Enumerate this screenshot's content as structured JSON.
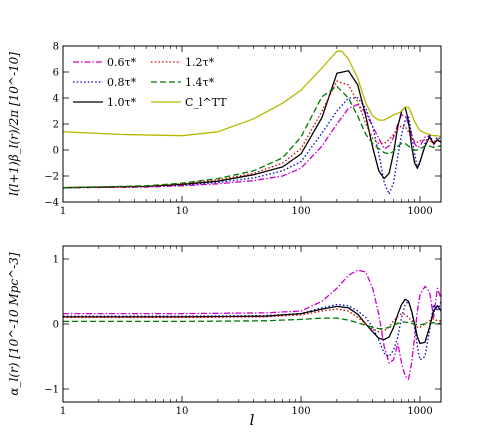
{
  "chart_data": [
    {
      "type": "line",
      "ylabel": "l(l+1)β_l(r)/2π   [10^-10]",
      "xscale": "log",
      "xlim": [
        1,
        1500
      ],
      "ylim": [
        -4,
        8
      ],
      "xticks": [
        "1",
        "10",
        "100",
        "1000"
      ],
      "yticks": [
        "−4",
        "−2",
        "0",
        "2",
        "4",
        "6",
        "8"
      ],
      "legend_location": "upper-left",
      "series": [
        {
          "name": "0.6τ*",
          "color": "#cc00cc",
          "dash": "6 2 1.5 2",
          "x": [
            1,
            5,
            10,
            20,
            40,
            70,
            100,
            150,
            200,
            250,
            300,
            350,
            400,
            450,
            500,
            550,
            600,
            650,
            700,
            750,
            800,
            850,
            900,
            950,
            1000,
            1100,
            1200,
            1300,
            1400,
            1500
          ],
          "y": [
            -2.9,
            -2.85,
            -2.75,
            -2.6,
            -2.35,
            -2.0,
            -1.4,
            0.3,
            2.0,
            3.2,
            3.5,
            2.9,
            1.8,
            0.9,
            0.1,
            0.3,
            1.0,
            2.0,
            2.7,
            2.6,
            2.0,
            1.2,
            0.5,
            0.2,
            0.3,
            1.0,
            1.1,
            0.4,
            0.8,
            0.6
          ]
        },
        {
          "name": "0.8τ*",
          "color": "#0000cc",
          "dash": "1.5 2.2",
          "x": [
            1,
            5,
            10,
            20,
            40,
            70,
            100,
            150,
            200,
            250,
            300,
            350,
            400,
            450,
            500,
            550,
            600,
            650,
            700,
            750,
            800,
            850,
            900,
            950,
            1000,
            1100,
            1200,
            1300,
            1400,
            1500
          ],
          "y": [
            -2.9,
            -2.8,
            -2.7,
            -2.5,
            -2.15,
            -1.6,
            -0.9,
            1.3,
            3.0,
            4.0,
            4.0,
            3.2,
            1.8,
            -0.3,
            -2.5,
            -3.4,
            -2.5,
            -0.5,
            1.2,
            2.3,
            2.6,
            1.2,
            -0.3,
            -1.4,
            -1.0,
            0.5,
            1.2,
            0.5,
            1.0,
            0.8
          ]
        },
        {
          "name": "1.0τ*",
          "color": "#000000",
          "dash": "",
          "x": [
            1,
            5,
            10,
            20,
            40,
            70,
            100,
            150,
            200,
            250,
            300,
            350,
            400,
            450,
            500,
            550,
            600,
            650,
            700,
            750,
            800,
            850,
            900,
            950,
            1000,
            1100,
            1200,
            1300,
            1400,
            1500
          ],
          "y": [
            -2.9,
            -2.8,
            -2.65,
            -2.4,
            -1.9,
            -1.3,
            -0.3,
            2.5,
            5.9,
            6.1,
            5.0,
            2.6,
            0.2,
            -1.6,
            -2.2,
            -1.8,
            -0.2,
            1.8,
            3.0,
            3.3,
            2.2,
            0.3,
            -1.0,
            -1.4,
            -0.9,
            0.3,
            1.0,
            0.5,
            0.8,
            0.6
          ]
        },
        {
          "name": "1.2τ*",
          "color": "#cc0000",
          "dash": "1.5 2.2",
          "x": [
            1,
            5,
            10,
            20,
            40,
            70,
            100,
            150,
            200,
            250,
            300,
            350,
            400,
            450,
            500,
            550,
            600,
            650,
            700,
            750,
            800,
            850,
            900,
            950,
            1000,
            1100,
            1200,
            1300,
            1400,
            1500
          ],
          "y": [
            -2.9,
            -2.8,
            -2.6,
            -2.3,
            -1.8,
            -1.0,
            0.1,
            3.0,
            5.3,
            5.0,
            3.7,
            2.0,
            0.9,
            0.5,
            0.5,
            0.8,
            1.2,
            1.6,
            1.9,
            1.8,
            1.4,
            0.9,
            0.7,
            0.6,
            0.7,
            0.8,
            0.7,
            0.6,
            0.7,
            0.6
          ]
        },
        {
          "name": "1.4τ*",
          "color": "#007700",
          "dash": "6 3",
          "x": [
            1,
            5,
            10,
            20,
            40,
            70,
            100,
            150,
            200,
            250,
            300,
            350,
            400,
            450,
            500,
            550,
            600,
            650,
            700,
            750,
            800,
            850,
            900,
            950,
            1000,
            1100,
            1200,
            1300,
            1400,
            1500
          ],
          "y": [
            -2.9,
            -2.75,
            -2.55,
            -2.2,
            -1.6,
            -0.6,
            1.0,
            4.1,
            4.9,
            4.0,
            2.6,
            1.2,
            0.5,
            0.1,
            -0.2,
            -0.3,
            -0.1,
            0.3,
            0.5,
            0.5,
            0.3,
            0.1,
            0.0,
            0.0,
            0.1,
            0.3,
            0.3,
            0.2,
            0.3,
            0.3
          ]
        },
        {
          "name": "C_l^TT",
          "color": "#b8b800",
          "dash": "",
          "x": [
            1,
            3,
            10,
            20,
            40,
            70,
            100,
            150,
            200,
            220,
            250,
            300,
            350,
            400,
            450,
            500,
            550,
            600,
            650,
            700,
            750,
            800,
            850,
            900,
            950,
            1000,
            1100,
            1200,
            1300,
            1400,
            1500
          ],
          "y": [
            1.4,
            1.2,
            1.1,
            1.4,
            2.4,
            3.6,
            4.6,
            6.3,
            7.6,
            7.6,
            7.0,
            5.5,
            3.6,
            2.6,
            2.3,
            2.3,
            2.5,
            2.7,
            2.8,
            3.0,
            3.3,
            3.3,
            2.8,
            2.2,
            1.8,
            1.5,
            1.3,
            1.2,
            1.1,
            1.1,
            1.0
          ]
        }
      ]
    },
    {
      "type": "line",
      "xlabel": "l",
      "ylabel": "α_l(r)   [10^-10 Mpc^-3]",
      "xscale": "log",
      "xlim": [
        1,
        1500
      ],
      "ylim": [
        -1.2,
        1.2
      ],
      "xticks": [
        "1",
        "10",
        "100",
        "1000"
      ],
      "yticks": [
        "−1",
        "0",
        "1"
      ],
      "series": [
        {
          "name": "0.6τ*",
          "color": "#cc00cc",
          "dash": "6 2 1.5 2",
          "x": [
            1,
            10,
            50,
            100,
            150,
            200,
            250,
            300,
            350,
            400,
            450,
            500,
            550,
            600,
            650,
            700,
            750,
            800,
            850,
            900,
            950,
            1000,
            1100,
            1200,
            1300,
            1400,
            1500
          ],
          "y": [
            0.16,
            0.16,
            0.17,
            0.2,
            0.35,
            0.55,
            0.75,
            0.83,
            0.8,
            0.55,
            0.15,
            -0.35,
            -0.6,
            -0.55,
            -0.3,
            -0.6,
            -0.8,
            -0.85,
            -0.6,
            -0.2,
            0.2,
            0.45,
            0.58,
            0.5,
            0.1,
            0.55,
            0.4
          ]
        },
        {
          "name": "0.8τ*",
          "color": "#0000cc",
          "dash": "1.5 2.2",
          "x": [
            1,
            10,
            50,
            100,
            150,
            200,
            250,
            300,
            350,
            400,
            450,
            500,
            550,
            600,
            650,
            700,
            750,
            800,
            850,
            900,
            950,
            1000,
            1100,
            1200,
            1300,
            1400,
            1500
          ],
          "y": [
            0.12,
            0.12,
            0.13,
            0.16,
            0.25,
            0.3,
            0.28,
            0.2,
            0.1,
            -0.05,
            -0.25,
            -0.45,
            -0.5,
            -0.4,
            -0.2,
            0.1,
            0.3,
            0.35,
            0.2,
            -0.05,
            -0.35,
            -0.55,
            -0.5,
            -0.1,
            0.3,
            0.2,
            0.35
          ]
        },
        {
          "name": "1.0τ*",
          "color": "#000000",
          "dash": "",
          "x": [
            1,
            10,
            50,
            100,
            150,
            200,
            250,
            300,
            350,
            400,
            450,
            500,
            550,
            600,
            650,
            700,
            750,
            800,
            850,
            900,
            950,
            1000,
            1100,
            1200,
            1300,
            1400,
            1500
          ],
          "y": [
            0.11,
            0.11,
            0.12,
            0.16,
            0.23,
            0.27,
            0.25,
            0.15,
            0.0,
            -0.12,
            -0.22,
            -0.24,
            -0.2,
            -0.05,
            0.15,
            0.3,
            0.38,
            0.35,
            0.2,
            0.0,
            -0.2,
            -0.3,
            -0.28,
            -0.05,
            0.2,
            0.28,
            0.2
          ]
        },
        {
          "name": "1.2τ*",
          "color": "#cc0000",
          "dash": "1.5 2.2",
          "x": [
            1,
            10,
            50,
            100,
            150,
            200,
            250,
            300,
            350,
            400,
            450,
            500,
            550,
            600,
            650,
            700,
            750,
            800,
            850,
            900,
            950,
            1000,
            1100,
            1200,
            1300,
            1400,
            1500
          ],
          "y": [
            0.1,
            0.1,
            0.11,
            0.14,
            0.2,
            0.23,
            0.2,
            0.1,
            0.0,
            -0.08,
            -0.12,
            -0.1,
            -0.05,
            0.05,
            0.12,
            0.16,
            0.15,
            0.1,
            0.05,
            0.0,
            -0.05,
            -0.05,
            0.0,
            0.05,
            0.08,
            0.05,
            0.05
          ]
        },
        {
          "name": "1.4τ*",
          "color": "#007700",
          "dash": "6 3",
          "x": [
            1,
            10,
            50,
            100,
            150,
            200,
            250,
            300,
            350,
            400,
            450,
            500,
            550,
            600,
            650,
            700,
            750,
            800,
            850,
            900,
            950,
            1000,
            1100,
            1200,
            1300,
            1400,
            1500
          ],
          "y": [
            0.04,
            0.04,
            0.05,
            0.07,
            0.09,
            0.09,
            0.06,
            0.02,
            -0.02,
            -0.05,
            -0.07,
            -0.07,
            -0.05,
            -0.02,
            0.01,
            0.03,
            0.03,
            0.02,
            0.01,
            0.0,
            -0.01,
            -0.01,
            0.0,
            0.01,
            0.02,
            0.01,
            0.01
          ]
        }
      ]
    }
  ]
}
